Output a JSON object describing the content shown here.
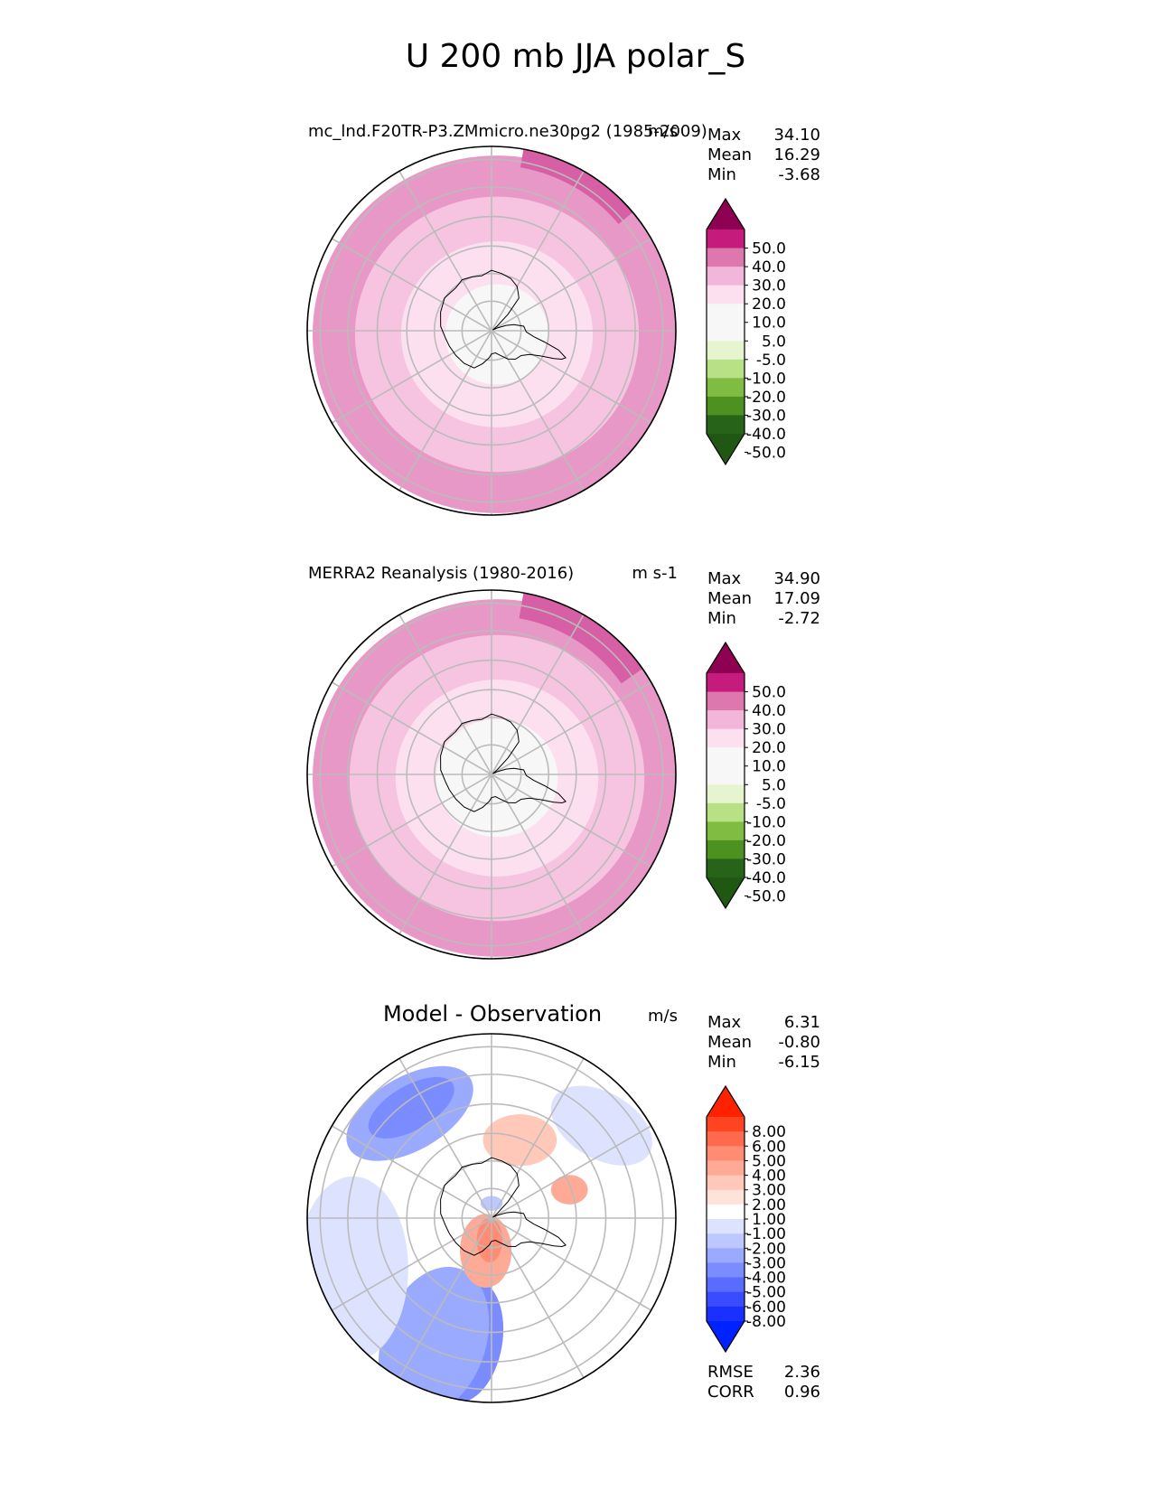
{
  "figure_title": "U 200 mb JJA polar_S",
  "chart_data": [
    {
      "type": "heatmap",
      "projection": "south-polar-stereographic",
      "title": "mc_lnd.F20TR-P3.ZMmicro.ne30pg2 (1985-2009)",
      "units": "m/s",
      "stats": [
        {
          "label": "Max",
          "value": "34.10"
        },
        {
          "label": "Mean",
          "value": "16.29"
        },
        {
          "label": "Min",
          "value": "-3.68"
        }
      ],
      "levels": [
        "50.0",
        "40.0",
        "30.0",
        "20.0",
        "10.0",
        "5.0",
        "-5.0",
        "-10.0",
        "-20.0",
        "-30.0",
        "-40.0",
        "-50.0"
      ],
      "colorbar_colors": [
        "#8e0152",
        "#c51b7d",
        "#de77ae",
        "#f1b6da",
        "#fde0ef",
        "#f7f7f7",
        "#f7f7f7",
        "#e6f5d0",
        "#b8e186",
        "#7fbc41",
        "#4d9221",
        "#276419",
        "#1f5713"
      ],
      "field_bands": [
        {
          "from": 0,
          "to": 0.28,
          "value_range": "-5.0 to 5.0",
          "color": "#f7f7f7"
        },
        {
          "from": 0.28,
          "to": 0.52,
          "value_range": "5.0 to 10.0",
          "color": "#fde0ef"
        },
        {
          "from": 0.52,
          "to": 0.77,
          "value_range": "10.0 to 20.0",
          "color": "#f6c4e0"
        },
        {
          "from": 0.77,
          "to": 1.0,
          "value_range": "20.0 to 30.0",
          "color": "#e898c6"
        }
      ],
      "jet_sector": {
        "value_range": "30.0 to 40.0",
        "color": "#d65fa6",
        "start_deg": 40,
        "end_deg": 80,
        "inner": 0.9
      }
    },
    {
      "type": "heatmap",
      "projection": "south-polar-stereographic",
      "title": "MERRA2 Reanalysis (1980-2016)",
      "units": "m s-1",
      "stats": [
        {
          "label": "Max",
          "value": "34.90"
        },
        {
          "label": "Mean",
          "value": "17.09"
        },
        {
          "label": "Min",
          "value": "-2.72"
        }
      ],
      "levels": [
        "50.0",
        "40.0",
        "30.0",
        "20.0",
        "10.0",
        "5.0",
        "-5.0",
        "-10.0",
        "-20.0",
        "-30.0",
        "-40.0",
        "-50.0"
      ],
      "colorbar_colors": [
        "#8e0152",
        "#c51b7d",
        "#de77ae",
        "#f1b6da",
        "#fde0ef",
        "#f7f7f7",
        "#f7f7f7",
        "#e6f5d0",
        "#b8e186",
        "#7fbc41",
        "#4d9221",
        "#276419",
        "#1f5713"
      ],
      "field_bands": [
        {
          "from": 0,
          "to": 0.33,
          "value_range": "-5.0 to 5.0",
          "color": "#f7f7f7"
        },
        {
          "from": 0.33,
          "to": 0.55,
          "value_range": "5.0 to 10.0",
          "color": "#fde0ef"
        },
        {
          "from": 0.55,
          "to": 0.8,
          "value_range": "10.0 to 20.0",
          "color": "#f6c4e0"
        },
        {
          "from": 0.8,
          "to": 1.0,
          "value_range": "20.0 to 30.0",
          "color": "#e898c6"
        }
      ],
      "jet_sector": {
        "value_range": "30.0 to 40.0",
        "color": "#d65fa6",
        "start_deg": 35,
        "end_deg": 80,
        "inner": 0.86
      }
    },
    {
      "type": "heatmap",
      "projection": "south-polar-stereographic",
      "title": "Model - Observation",
      "units": "m/s",
      "stats": [
        {
          "label": "Max",
          "value": "6.31"
        },
        {
          "label": "Mean",
          "value": "-0.80"
        },
        {
          "label": "Min",
          "value": "-6.15"
        }
      ],
      "levels": [
        "8.00",
        "6.00",
        "5.00",
        "4.00",
        "3.00",
        "2.00",
        "1.00",
        "-1.00",
        "-2.00",
        "-3.00",
        "-4.00",
        "-5.00",
        "-6.00",
        "-8.00"
      ],
      "colorbar_colors": [
        "#ff2200",
        "#ff4422",
        "#ff6a4d",
        "#ff8c73",
        "#ffaa96",
        "#ffc8b8",
        "#ffe2da",
        "#ffffff",
        "#dde3ff",
        "#bcc8ff",
        "#9aaaff",
        "#7a8cff",
        "#5a6cff",
        "#3a4cff",
        "#1a30ff",
        "#0022ff"
      ],
      "anomalies": [
        {
          "value_range": "-5.00 to -4.00",
          "color": "#7a8cff",
          "r": 0.68,
          "theta_deg": 258,
          "rx": 0.2,
          "ry": 0.34,
          "rot": 10
        },
        {
          "value_range": "-4.00 to -3.00",
          "color": "#9aaaff",
          "r": 0.74,
          "theta_deg": 245,
          "rx": 0.28,
          "ry": 0.42,
          "rot": 20
        },
        {
          "value_range": "-4.00 to -3.00",
          "color": "#9aaaff",
          "r": 0.72,
          "theta_deg": 128,
          "rx": 0.38,
          "ry": 0.2,
          "rot": -30
        },
        {
          "value_range": "-5.00 to -4.00",
          "color": "#7a8cff",
          "r": 0.74,
          "theta_deg": 126,
          "rx": 0.26,
          "ry": 0.12,
          "rot": -30
        },
        {
          "value_range": "-2.00 to -1.00",
          "color": "#dde3ff",
          "r": 0.8,
          "theta_deg": 200,
          "rx": 0.3,
          "ry": 0.5,
          "rot": 0
        },
        {
          "value_range": "-2.00 to -1.00",
          "color": "#dde3ff",
          "r": 0.78,
          "theta_deg": 40,
          "rx": 0.3,
          "ry": 0.18,
          "rot": 30
        },
        {
          "value_range": "3.00 to 4.00",
          "color": "#ffaa96",
          "r": 0.18,
          "theta_deg": 260,
          "rx": 0.14,
          "ry": 0.2,
          "rot": 0
        },
        {
          "value_range": "4.00 to 5.00",
          "color": "#ff8c73",
          "r": 0.12,
          "theta_deg": 265,
          "rx": 0.07,
          "ry": 0.12,
          "rot": 0
        },
        {
          "value_range": "2.00 to 3.00",
          "color": "#ffc8b8",
          "r": 0.45,
          "theta_deg": 70,
          "rx": 0.2,
          "ry": 0.14,
          "rot": 0
        },
        {
          "value_range": "3.00 to 4.00",
          "color": "#ffaa96",
          "r": 0.45,
          "theta_deg": 20,
          "rx": 0.1,
          "ry": 0.08,
          "rot": 0
        },
        {
          "value_range": "-3.00 to -2.00",
          "color": "#bcc8ff",
          "r": 0.08,
          "theta_deg": 90,
          "rx": 0.06,
          "ry": 0.04,
          "rot": 0
        }
      ],
      "metrics": [
        {
          "label": "RMSE",
          "value": "2.36"
        },
        {
          "label": "CORR",
          "value": "0.96"
        }
      ]
    }
  ],
  "colors": {
    "gridline": "#bbbbbb",
    "coastline": "#000000",
    "boundary": "#000000"
  }
}
